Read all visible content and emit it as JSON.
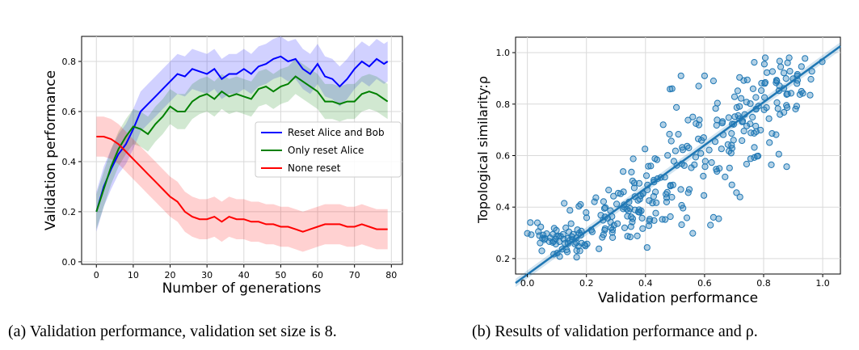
{
  "chart_data": [
    {
      "type": "line",
      "xlabel": "Number of generations",
      "ylabel": "Validation performance",
      "xlim": [
        -4,
        83
      ],
      "ylim": [
        -0.01,
        0.9
      ],
      "xticks": [
        0,
        10,
        20,
        30,
        40,
        50,
        60,
        70,
        80
      ],
      "yticks": [
        0.0,
        0.2,
        0.4,
        0.6,
        0.8
      ],
      "ytick_labels": [
        "0.0",
        "0.2",
        "0.4",
        "0.6",
        "0.8"
      ],
      "grid": true,
      "legend": "center-right",
      "caption": "(a)  Validation performance, validation set size is 8.",
      "x": [
        0,
        2,
        4,
        6,
        8,
        10,
        12,
        14,
        16,
        18,
        20,
        22,
        24,
        26,
        28,
        30,
        32,
        34,
        36,
        38,
        40,
        42,
        44,
        46,
        48,
        50,
        52,
        54,
        56,
        58,
        60,
        62,
        64,
        66,
        68,
        70,
        72,
        74,
        76,
        78,
        79
      ],
      "series": [
        {
          "name": "Reset Alice and Bob",
          "color": "#0000ff",
          "values": [
            0.2,
            0.3,
            0.37,
            0.43,
            0.47,
            0.53,
            0.6,
            0.63,
            0.66,
            0.69,
            0.72,
            0.75,
            0.74,
            0.77,
            0.76,
            0.75,
            0.77,
            0.73,
            0.75,
            0.75,
            0.77,
            0.75,
            0.78,
            0.79,
            0.81,
            0.82,
            0.8,
            0.81,
            0.77,
            0.75,
            0.79,
            0.74,
            0.73,
            0.7,
            0.73,
            0.77,
            0.8,
            0.78,
            0.81,
            0.79,
            0.8
          ],
          "band": 0.08
        },
        {
          "name": "Only reset Alice",
          "color": "#008000",
          "values": [
            0.2,
            0.29,
            0.38,
            0.45,
            0.5,
            0.54,
            0.53,
            0.51,
            0.55,
            0.58,
            0.62,
            0.6,
            0.6,
            0.64,
            0.66,
            0.67,
            0.65,
            0.68,
            0.66,
            0.67,
            0.66,
            0.65,
            0.69,
            0.7,
            0.68,
            0.7,
            0.71,
            0.74,
            0.72,
            0.7,
            0.68,
            0.64,
            0.64,
            0.63,
            0.64,
            0.64,
            0.67,
            0.68,
            0.67,
            0.65,
            0.64
          ],
          "band": 0.07
        },
        {
          "name": "None reset",
          "color": "#ff0000",
          "values": [
            0.5,
            0.5,
            0.49,
            0.47,
            0.44,
            0.41,
            0.38,
            0.35,
            0.32,
            0.29,
            0.26,
            0.24,
            0.2,
            0.18,
            0.17,
            0.17,
            0.18,
            0.16,
            0.18,
            0.17,
            0.17,
            0.16,
            0.16,
            0.15,
            0.15,
            0.14,
            0.14,
            0.13,
            0.12,
            0.13,
            0.14,
            0.15,
            0.15,
            0.15,
            0.14,
            0.14,
            0.15,
            0.14,
            0.13,
            0.13,
            0.13
          ],
          "band": 0.08
        }
      ]
    },
    {
      "type": "scatter",
      "xlabel": "Validation performance",
      "ylabel": "Topological similarity:ρ",
      "xlim": [
        -0.04,
        1.06
      ],
      "ylim": [
        0.14,
        1.06
      ],
      "xticks": [
        0.0,
        0.2,
        0.4,
        0.6,
        0.8,
        1.0
      ],
      "yticks": [
        0.2,
        0.4,
        0.6,
        0.8,
        1.0
      ],
      "tick_labels_x": [
        "0.0",
        "0.2",
        "0.4",
        "0.6",
        "0.8",
        "1.0"
      ],
      "tick_labels_y": [
        "0.2",
        "0.4",
        "0.6",
        "0.8",
        "1.0"
      ],
      "grid": true,
      "marker_color": "#1f77b4",
      "regression_line": {
        "x": [
          -0.04,
          1.06
        ],
        "y": [
          0.105,
          1.025
        ]
      },
      "caption": "(b)  Results of validation performance and ρ.",
      "clusters": [
        {
          "cx": 0.12,
          "cy": 0.27,
          "sx": 0.06,
          "sy": 0.03,
          "n": 60
        },
        {
          "cx": 0.3,
          "cy": 0.37,
          "sx": 0.08,
          "sy": 0.05,
          "n": 60
        },
        {
          "cx": 0.45,
          "cy": 0.45,
          "sx": 0.07,
          "sy": 0.07,
          "n": 50
        },
        {
          "cx": 0.6,
          "cy": 0.6,
          "sx": 0.08,
          "sy": 0.1,
          "n": 55
        },
        {
          "cx": 0.75,
          "cy": 0.72,
          "sx": 0.06,
          "sy": 0.08,
          "n": 50
        },
        {
          "cx": 0.85,
          "cy": 0.87,
          "sx": 0.06,
          "sy": 0.06,
          "n": 50
        }
      ],
      "outliers": [
        [
          0.01,
          0.34
        ],
        [
          0.18,
          0.41
        ],
        [
          0.52,
          0.91
        ],
        [
          0.58,
          0.87
        ],
        [
          0.6,
          0.91
        ],
        [
          0.49,
          0.86
        ],
        [
          0.63,
          0.89
        ],
        [
          0.38,
          0.38
        ],
        [
          0.65,
          0.55
        ],
        [
          0.69,
          0.61
        ],
        [
          0.56,
          0.75
        ],
        [
          0.46,
          0.72
        ],
        [
          0.62,
          0.33
        ],
        [
          0.63,
          0.36
        ]
      ]
    }
  ]
}
